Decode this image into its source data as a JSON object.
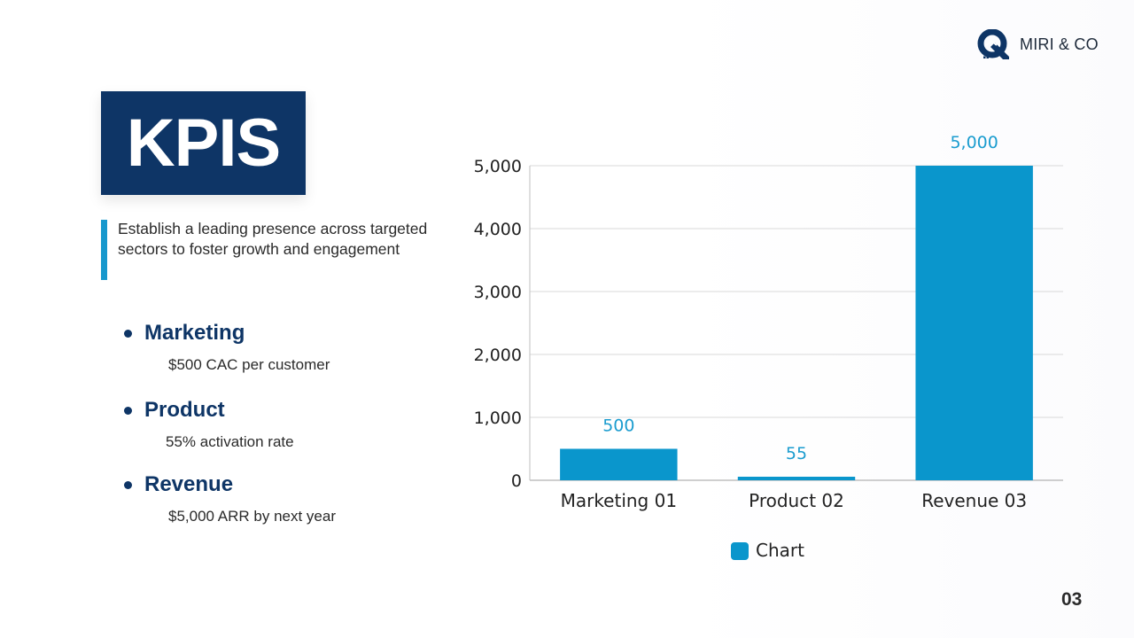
{
  "brand": {
    "name": "MIRI & CO",
    "accent": "#0e3566"
  },
  "title": "KPIS",
  "subtitle": "Establish a leading presence across targeted sectors to foster growth and engagement",
  "kpis": [
    {
      "title": "Marketing",
      "desc": "$500 CAC per customer"
    },
    {
      "title": "Product",
      "desc": "55% activation rate"
    },
    {
      "title": "Revenue",
      "desc": "$5,000 ARR by next year"
    }
  ],
  "page_number": "03",
  "chart_data": {
    "type": "bar",
    "categories": [
      "Marketing 01",
      "Product 02",
      "Revenue 03"
    ],
    "series": [
      {
        "name": "Chart",
        "values": [
          500,
          55,
          5000
        ],
        "color": "#0a96cc"
      }
    ],
    "data_labels": [
      "500",
      "55",
      "5,000"
    ],
    "yticks": [
      0,
      1000,
      2000,
      3000,
      4000,
      5000
    ],
    "ytick_labels": [
      "0",
      "1,000",
      "2,000",
      "3,000",
      "4,000",
      "5,000"
    ],
    "ylim": [
      0,
      5000
    ],
    "grid": true,
    "legend": "bottom"
  }
}
